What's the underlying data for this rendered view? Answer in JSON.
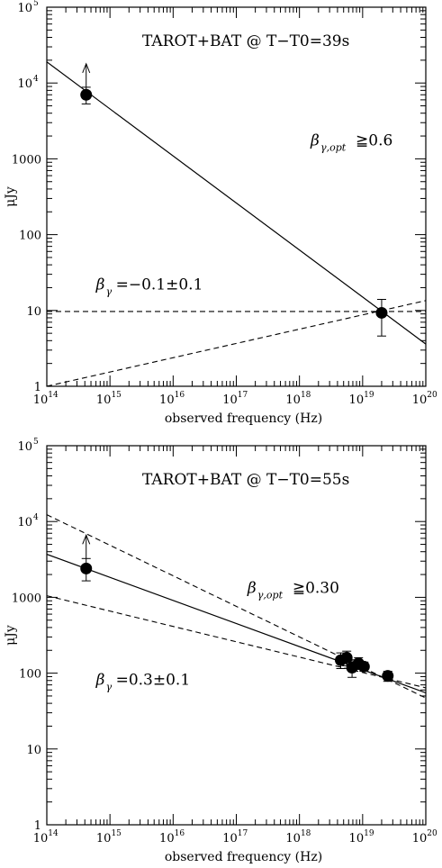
{
  "chart_data": [
    {
      "type": "scatter",
      "title": "TAROT+BAT @ T−T0=39s",
      "xlabel": "observed frequency (Hz)",
      "ylabel": "μJy",
      "xscale": "log",
      "yscale": "log",
      "xlim": [
        100000000000000.0,
        1e+20
      ],
      "ylim": [
        1,
        100000
      ],
      "x_ticks": [
        {
          "base": "10",
          "exp": "14"
        },
        {
          "base": "10",
          "exp": "15"
        },
        {
          "base": "10",
          "exp": "16"
        },
        {
          "base": "10",
          "exp": "17"
        },
        {
          "base": "10",
          "exp": "18"
        },
        {
          "base": "10",
          "exp": "19"
        },
        {
          "base": "10",
          "exp": "20"
        }
      ],
      "y_ticks": [
        {
          "text": "1",
          "exp": ""
        },
        {
          "text": "10",
          "exp": ""
        },
        {
          "text": "100",
          "exp": ""
        },
        {
          "text": "1000",
          "exp": ""
        },
        {
          "text": "10",
          "exp": "4"
        },
        {
          "text": "10",
          "exp": "5"
        }
      ],
      "points": [
        {
          "x": 420000000000000.0,
          "y": 7000,
          "err_lo": 5300,
          "err_hi": 8800,
          "lower_limit": true
        },
        {
          "x": 2e+19,
          "y": 9.3,
          "err_lo": 4.6,
          "err_hi": 14
        }
      ],
      "lines": [
        {
          "style": "solid",
          "x": [
            100000000000000.0,
            1e+20
          ],
          "y": [
            19000,
            3.6
          ]
        },
        {
          "style": "dashed",
          "x": [
            100000000000000.0,
            1e+20
          ],
          "y": [
            9.7,
            9.7
          ]
        },
        {
          "style": "dashed",
          "x": [
            100000000000000.0,
            1e+20
          ],
          "y": [
            1.0,
            13.5
          ]
        }
      ],
      "annotations": [
        {
          "main": "β",
          "sub": "γ,opt",
          "rest": "≧0.6",
          "x": 1.5e+18,
          "y": 1500
        },
        {
          "main": "β",
          "sub": "γ",
          "rest": "=−0.1±0.1",
          "x": 600000000000000.0,
          "y": 19
        }
      ]
    },
    {
      "type": "scatter",
      "title": "TAROT+BAT @ T−T0=55s",
      "xlabel": "observed frequency (Hz)",
      "ylabel": "μJy",
      "xscale": "log",
      "yscale": "log",
      "xlim": [
        100000000000000.0,
        1e+20
      ],
      "ylim": [
        1,
        100000
      ],
      "x_ticks": [
        {
          "base": "10",
          "exp": "14"
        },
        {
          "base": "10",
          "exp": "15"
        },
        {
          "base": "10",
          "exp": "16"
        },
        {
          "base": "10",
          "exp": "17"
        },
        {
          "base": "10",
          "exp": "18"
        },
        {
          "base": "10",
          "exp": "19"
        },
        {
          "base": "10",
          "exp": "20"
        }
      ],
      "y_ticks": [
        {
          "text": "1",
          "exp": ""
        },
        {
          "text": "10",
          "exp": ""
        },
        {
          "text": "100",
          "exp": ""
        },
        {
          "text": "1000",
          "exp": ""
        },
        {
          "text": "10",
          "exp": "4"
        },
        {
          "text": "10",
          "exp": "5"
        }
      ],
      "points": [
        {
          "x": 420000000000000.0,
          "y": 2400,
          "err_lo": 1650,
          "err_hi": 3250,
          "lower_limit": true
        },
        {
          "x": 4.5e+18,
          "y": 148,
          "err_lo": 115,
          "err_hi": 185
        },
        {
          "x": 5.6e+18,
          "y": 160,
          "err_lo": 125,
          "err_hi": 195
        },
        {
          "x": 6.8e+18,
          "y": 118,
          "err_lo": 88,
          "err_hi": 150
        },
        {
          "x": 8.6e+18,
          "y": 135,
          "err_lo": 112,
          "err_hi": 160
        },
        {
          "x": 1.05e+19,
          "y": 122,
          "err_lo": 106,
          "err_hi": 140
        },
        {
          "x": 2.5e+19,
          "y": 92,
          "err_lo": 78,
          "err_hi": 106
        }
      ],
      "lines": [
        {
          "style": "solid",
          "x": [
            100000000000000.0,
            1e+20
          ],
          "y": [
            3700,
            55
          ]
        },
        {
          "style": "dashed",
          "x": [
            100000000000000.0,
            1e+20
          ],
          "y": [
            12300,
            47
          ]
        },
        {
          "style": "dashed",
          "x": [
            100000000000000.0,
            1e+20
          ],
          "y": [
            1050,
            64
          ]
        }
      ],
      "annotations": [
        {
          "main": "β",
          "sub": "γ,opt",
          "rest": "≧0.30",
          "x": 1.5e+17,
          "y": 1150
        },
        {
          "main": "β",
          "sub": "γ",
          "rest": "=0.3±0.1",
          "x": 600000000000000.0,
          "y": 70
        }
      ]
    }
  ]
}
